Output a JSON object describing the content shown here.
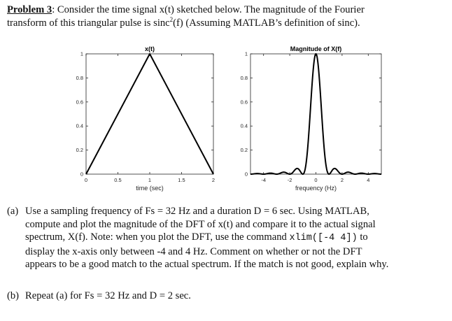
{
  "problem": {
    "heading": "Problem 3",
    "colon": ":",
    "line1": " Consider the time signal x(t) sketched below.  The magnitude of the Fourier",
    "line2a": "transform of this triangular pulse is sinc",
    "sup": "2",
    "line2b": "(f) (Assuming MATLAB’s definition of sinc)."
  },
  "chart_data": [
    {
      "type": "line",
      "title": "x(t)",
      "xlabel": "time (sec)",
      "ylabel": "",
      "xlim": [
        0,
        2
      ],
      "ylim": [
        0,
        1
      ],
      "xticks": [
        0,
        0.5,
        1,
        1.5,
        2
      ],
      "xtick_labels": [
        "0",
        "0.5",
        "1",
        "1.5",
        "2"
      ],
      "yticks": [
        0,
        0.2,
        0.4,
        0.6,
        0.8,
        1
      ],
      "ytick_labels": [
        "0",
        "0.2",
        "0.4",
        "0.6",
        "0.8",
        "1"
      ],
      "grid": false,
      "series": [
        {
          "x": [
            0,
            1,
            2
          ],
          "y": [
            0,
            1,
            0
          ]
        }
      ]
    },
    {
      "type": "line",
      "title": "Magnitude of X(f)",
      "xlabel": "frequency (Hz)",
      "ylabel": "",
      "xlim": [
        -5,
        5
      ],
      "ylim": [
        0,
        1
      ],
      "xticks": [
        -4,
        -2,
        0,
        2,
        4
      ],
      "xtick_labels": [
        "-4",
        "-2",
        "0",
        "2",
        "4"
      ],
      "yticks": [
        0,
        0.2,
        0.4,
        0.6,
        0.8,
        1
      ],
      "ytick_labels": [
        "0",
        "0.2",
        "0.4",
        "0.6",
        "0.8",
        "1"
      ],
      "grid": false,
      "series": [
        {
          "function": "sinc^2(f)"
        }
      ]
    }
  ],
  "parts": {
    "a_label": "(a)",
    "a_line1": "Use a sampling frequency of Fs = 32 Hz and a duration D = 6 sec.  Using MATLAB,",
    "a_line2": "compute and plot the magnitude of the DFT of x(t) and compare it to the actual signal",
    "a_line3": "spectrum, X(f).  Note: when you plot the DFT, use the command ",
    "a_code": "xlim([-4 4])",
    "a_line3_end": " to",
    "a_line4": "display the x-axis only between -4 and 4 Hz.  Comment on whether or not the DFT",
    "a_line5": "appears to be a good match to the actual spectrum.  If the match is not good, explain why.",
    "b_label": "(b)",
    "b_line1": "Repeat (a) for Fs = 32 Hz and D = 2 sec."
  }
}
